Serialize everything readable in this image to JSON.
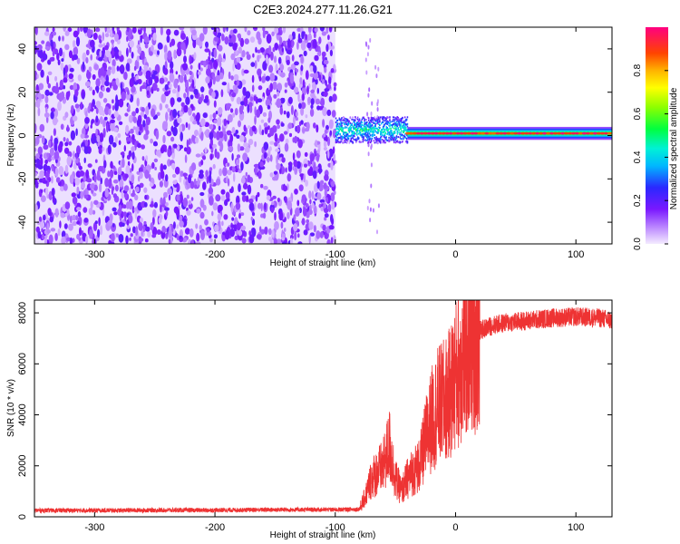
{
  "chart_data": [
    {
      "type": "heatmap",
      "title": "C2E3.2024.277.11.26.G21",
      "xlabel": "Height of straight line (km)",
      "ylabel": "Frequency (Hz)",
      "xlim": [
        -350,
        130
      ],
      "ylim": [
        -50,
        50
      ],
      "xticks": [
        -300,
        -200,
        -100,
        0,
        100
      ],
      "yticks": [
        -40,
        -20,
        0,
        20,
        40
      ],
      "colorbar": {
        "label": "Normalized spectral amplitude",
        "range": [
          0,
          1
        ],
        "ticks": [
          0.0,
          0.2,
          0.4,
          0.6,
          0.8
        ]
      },
      "regions": [
        {
          "x_range": [
            -350,
            -100
          ],
          "frequency_range": [
            -50,
            50
          ],
          "amplitude": 0.1
        },
        {
          "x_range": [
            -100,
            -40
          ],
          "frequency_center": 3,
          "frequency_width": 12,
          "amplitude": 0.45
        },
        {
          "x_range": [
            -40,
            130
          ],
          "frequency_center": 1,
          "frequency_width": 6,
          "amplitude": 0.3,
          "peak_amplitude": 1.0
        }
      ]
    },
    {
      "type": "line",
      "xlabel": "Height of straight line (km)",
      "ylabel": "SNR (10 * v/v)",
      "xlim": [
        -350,
        130
      ],
      "ylim": [
        0,
        8500
      ],
      "xticks": [
        -300,
        -200,
        -100,
        0,
        100
      ],
      "yticks": [
        0,
        2000,
        4000,
        6000,
        8000
      ],
      "series": [
        {
          "color": "#ee3333",
          "x": [
            -350,
            -300,
            -250,
            -200,
            -150,
            -100,
            -80,
            -75,
            -70,
            -60,
            -55,
            -50,
            -45,
            -40,
            -35,
            -30,
            -25,
            -20,
            -15,
            -10,
            -5,
            0,
            5,
            10,
            15,
            20,
            30,
            40,
            60,
            80,
            100,
            120,
            130
          ],
          "y": [
            250,
            250,
            260,
            260,
            280,
            280,
            300,
            800,
            1500,
            2000,
            2800,
            1500,
            1000,
            1500,
            1800,
            2000,
            3000,
            3800,
            4300,
            4500,
            4800,
            5500,
            6200,
            6700,
            7000,
            7300,
            7500,
            7600,
            7700,
            7800,
            7850,
            7800,
            7700
          ]
        }
      ]
    }
  ]
}
